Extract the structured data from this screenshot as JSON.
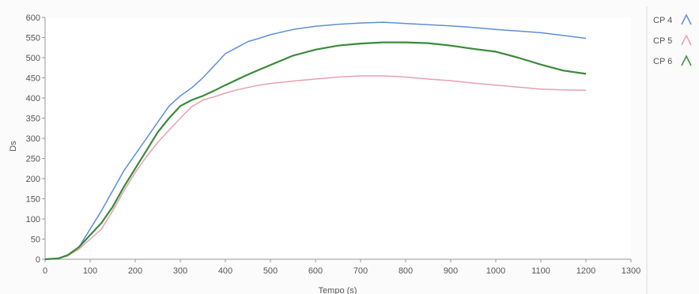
{
  "chart_data": {
    "type": "line",
    "xlabel": "Tempo (s)",
    "ylabel": "Ds",
    "xlim": [
      0,
      1300
    ],
    "ylim": [
      0,
      600
    ],
    "xticks": [
      0,
      100,
      200,
      300,
      400,
      500,
      600,
      700,
      800,
      900,
      1000,
      1100,
      1200,
      1300
    ],
    "yticks": [
      0,
      50,
      100,
      150,
      200,
      250,
      300,
      350,
      400,
      450,
      500,
      550,
      600
    ],
    "grid": false,
    "legend_position": "right",
    "series": [
      {
        "name": "CP 4",
        "color": "#5b8fd6",
        "x": [
          0,
          30,
          50,
          75,
          100,
          125,
          150,
          175,
          200,
          225,
          250,
          275,
          300,
          325,
          350,
          375,
          400,
          425,
          450,
          475,
          500,
          550,
          600,
          650,
          700,
          750,
          800,
          850,
          900,
          950,
          1000,
          1050,
          1100,
          1150,
          1200
        ],
        "y": [
          0,
          3,
          10,
          30,
          75,
          120,
          170,
          220,
          260,
          300,
          340,
          380,
          405,
          425,
          450,
          480,
          510,
          525,
          540,
          548,
          557,
          570,
          578,
          583,
          586,
          588,
          585,
          582,
          579,
          575,
          570,
          566,
          562,
          555,
          548
        ]
      },
      {
        "name": "CP 5",
        "color": "#e8a0b0",
        "x": [
          0,
          30,
          50,
          75,
          100,
          125,
          150,
          175,
          200,
          225,
          250,
          275,
          300,
          325,
          350,
          375,
          400,
          425,
          450,
          475,
          500,
          550,
          600,
          650,
          700,
          750,
          800,
          850,
          900,
          950,
          1000,
          1050,
          1100,
          1150,
          1200
        ],
        "y": [
          0,
          2,
          8,
          25,
          50,
          75,
          120,
          170,
          215,
          255,
          290,
          320,
          350,
          378,
          395,
          403,
          412,
          420,
          426,
          432,
          436,
          442,
          447,
          452,
          455,
          455,
          452,
          447,
          443,
          437,
          432,
          427,
          422,
          420,
          419
        ]
      },
      {
        "name": "CP 6",
        "color": "#3a8a3a",
        "x": [
          0,
          30,
          50,
          75,
          100,
          125,
          150,
          175,
          200,
          225,
          250,
          275,
          300,
          325,
          350,
          375,
          400,
          425,
          450,
          475,
          500,
          550,
          600,
          650,
          700,
          750,
          800,
          850,
          900,
          950,
          1000,
          1050,
          1100,
          1150,
          1200
        ],
        "y": [
          0,
          2,
          10,
          30,
          60,
          90,
          130,
          180,
          225,
          270,
          315,
          350,
          380,
          395,
          405,
          418,
          432,
          445,
          458,
          470,
          482,
          505,
          520,
          530,
          535,
          538,
          538,
          536,
          530,
          522,
          515,
          500,
          483,
          468,
          460
        ]
      }
    ]
  }
}
